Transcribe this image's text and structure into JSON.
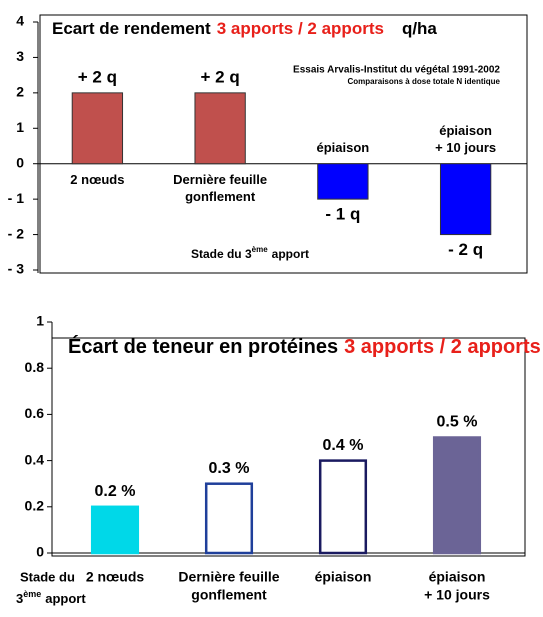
{
  "chart_data": [
    {
      "type": "bar",
      "title": "Ecart de rendement",
      "title_highlight": "3 apports / 2 apports",
      "unit": "q/ha",
      "subtitle": [
        "Essais Arvalis-Institut du végétal  1991-2002",
        "Comparaisons à dose totale N identique"
      ],
      "xlabel": [
        "Stade du 3",
        "ème",
        "apport"
      ],
      "categories": [
        [
          "2 nœuds"
        ],
        [
          "Dernière feuille",
          "gonflement"
        ],
        [
          "épiaison"
        ],
        [
          "épiaison",
          "+ 10 jours"
        ]
      ],
      "values": [
        2,
        2,
        -1,
        -2
      ],
      "value_labels": [
        "+ 2 q",
        "+ 2 q",
        "- 1 q",
        "- 2 q"
      ],
      "colors": [
        "#c0504d",
        "#c0504d",
        "#0000ff",
        "#0000ff"
      ],
      "value_label_colors": [
        "#c0504d",
        "#c0504d",
        "#2a4a7a",
        "#2a4a7a"
      ],
      "ylim": [
        -3,
        4
      ],
      "yticks": [
        {
          "value": -3,
          "label": "- 3"
        },
        {
          "value": -2,
          "label": "- 2"
        },
        {
          "value": -1,
          "label": "- 1"
        },
        0,
        1,
        2,
        3,
        4
      ]
    },
    {
      "type": "bar",
      "title": "Écart de teneur en protéines",
      "title_highlight": "3 apports / 2 apports",
      "unit": "%",
      "xlabel": [
        "Stade du",
        "3",
        "ème",
        "apport"
      ],
      "categories": [
        [
          "2 nœuds"
        ],
        [
          "Dernière feuille",
          "gonflement"
        ],
        [
          "épiaison"
        ],
        [
          "épiaison",
          "+ 10 jours"
        ]
      ],
      "values": [
        0.2,
        0.3,
        0.4,
        0.5
      ],
      "value_labels": [
        "0.2 %",
        "0.3 %",
        "0.4 %",
        "0.5 %"
      ],
      "colors": [
        "#00d8e8",
        "#ffffff",
        "#ffffff",
        "#6b6496"
      ],
      "edge_colors": [
        "#00d8e8",
        "#1f3f9a",
        "#1a1a60",
        "#6b6496"
      ],
      "value_label_colors": [
        "#2060d0",
        "#2060d0",
        "#2060d0",
        "#2060d0"
      ],
      "ylim": [
        0,
        1
      ],
      "yticks": [
        0,
        0.2,
        0.4,
        0.6,
        0.8,
        1
      ]
    }
  ]
}
